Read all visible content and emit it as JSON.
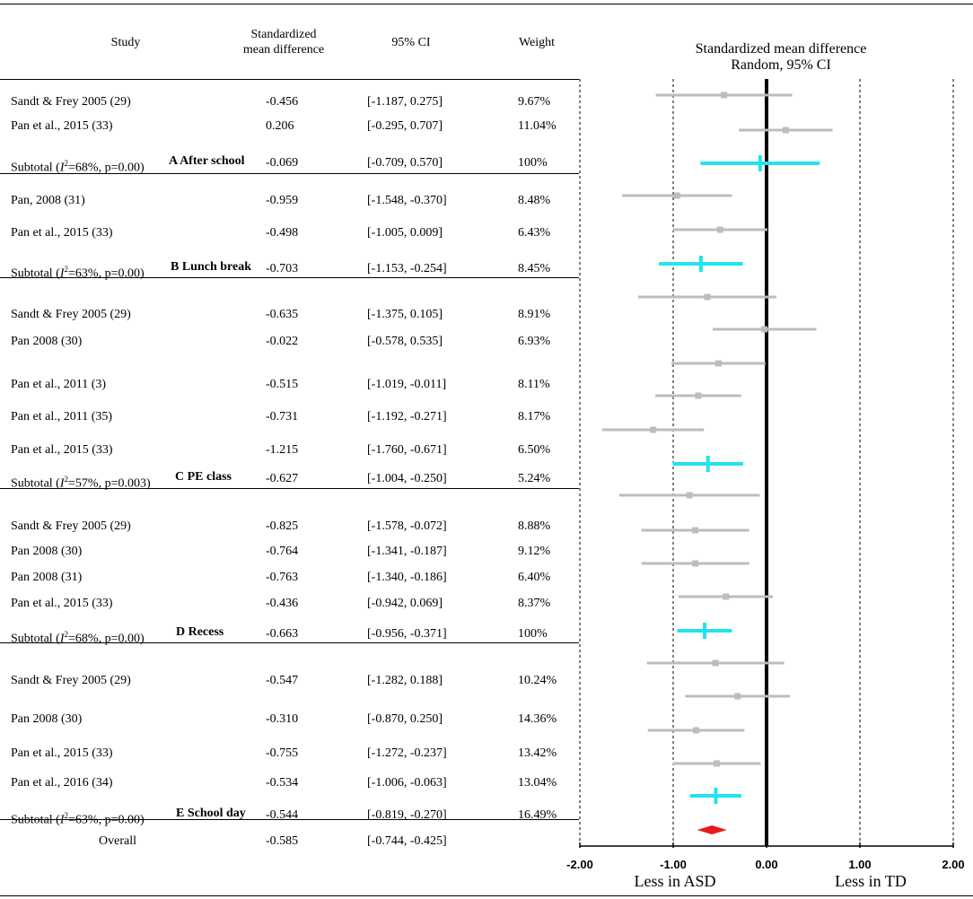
{
  "header": {
    "study": "Study",
    "smd": "Standardized mean difference",
    "ci": "95% CI",
    "weight": "Weight",
    "plot_title_line1": "Standardized mean difference",
    "plot_title_line2": "Random, 95% CI"
  },
  "rows": [
    {
      "study": "Sandt & Frey 2005 (29)",
      "smd": "-0.456",
      "ci": "[-1.187, 0.275]",
      "weight": "9.67%"
    },
    {
      "study": "Pan et al., 2015 (33)",
      "smd": "0.206",
      "ci": "[-0.295, 0.707]",
      "weight": "11.04%"
    },
    {
      "study": "Subtotal (I²=68%, p=0.00)",
      "tag": "A After school",
      "smd": "-0.069",
      "ci": "[-0.709, 0.570]",
      "weight": "100%"
    },
    {
      "study": "Pan, 2008 (31)",
      "smd": "-0.959",
      "ci": "[-1.548, -0.370]",
      "weight": "8.48%"
    },
    {
      "study": "Pan et al., 2015 (33)",
      "smd": "-0.498",
      "ci": "[-1.005, 0.009]",
      "weight": "6.43%"
    },
    {
      "study": "Subtotal (I²=63%, p=0.00)",
      "tag": "B Lunch break",
      "smd": "-0.703",
      "ci": "[-1.153, -0.254]",
      "weight": "8.45%"
    },
    {
      "study": "Sandt & Frey 2005 (29)",
      "smd": "-0.635",
      "ci": "[-1.375, 0.105]",
      "weight": "8.91%"
    },
    {
      "study": "Pan 2008 (30)",
      "smd": "-0.022",
      "ci": "[-0.578, 0.535]",
      "weight": "6.93%"
    },
    {
      "study": "Pan et al., 2011 (3)",
      "smd": "-0.515",
      "ci": "[-1.019, -0.011]",
      "weight": "8.11%"
    },
    {
      "study": "Pan et al., 2011 (35)",
      "smd": "-0.731",
      "ci": "[-1.192, -0.271]",
      "weight": "8.17%"
    },
    {
      "study": "Pan et al., 2015 (33)",
      "smd": "-1.215",
      "ci": "[-1.760, -0.671]",
      "weight": "6.50%"
    },
    {
      "study": "Subtotal (I²=57%, p=0.003)",
      "tag": "C PE class",
      "smd": "-0.627",
      "ci": "[-1.004, -0.250]",
      "weight": "5.24%"
    },
    {
      "study": "Sandt & Frey 2005 (29)",
      "smd": "-0.825",
      "ci": "[-1.578, -0.072]",
      "weight": "8.88%"
    },
    {
      "study": "Pan 2008 (30)",
      "smd": "-0.764",
      "ci": "[-1.341, -0.187]",
      "weight": "9.12%"
    },
    {
      "study": "Pan 2008 (31)",
      "smd": "-0.763",
      "ci": "[-1.340, -0.186]",
      "weight": "6.40%"
    },
    {
      "study": "Pan et al., 2015 (33)",
      "smd": "-0.436",
      "ci": "[-0.942, 0.069]",
      "weight": "8.37%"
    },
    {
      "study": "Subtotal (I²=68%, p=0.00)",
      "tag": "D Recess",
      "smd": "-0.663",
      "ci": "[-0.956, -0.371]",
      "weight": "100%"
    },
    {
      "study": "Sandt & Frey 2005 (29)",
      "smd": "-0.547",
      "ci": "[-1.282, 0.188]",
      "weight": "10.24%"
    },
    {
      "study": "Pan 2008 (30)",
      "smd": "-0.310",
      "ci": "[-0.870, 0.250]",
      "weight": "14.36%"
    },
    {
      "study": "Pan et al., 2015 (33)",
      "smd": "-0.755",
      "ci": "[-1.272, -0.237]",
      "weight": "13.42%"
    },
    {
      "study": "Pan et al., 2016 (34)",
      "smd": "-0.534",
      "ci": "[-1.006, -0.063]",
      "weight": "13.04%"
    },
    {
      "study": "Subtotal (I²=63%, p=0.00)",
      "tag": "E School day",
      "smd": "-0.544",
      "ci": "[-0.819, -0.270]",
      "weight": "16.49%"
    },
    {
      "study": "Overall",
      "smd": "-0.585",
      "ci": "[-0.744, -0.425]",
      "weight": ""
    }
  ],
  "chart_data": {
    "type": "forest",
    "title": "Standardized mean difference Random, 95% CI",
    "xlim": [
      -2.0,
      2.0
    ],
    "xticks": [
      "-2.00",
      "-1.00",
      "0.00",
      "1.00",
      "2.00"
    ],
    "xtick_values": [
      -2,
      -1,
      0,
      1,
      2
    ],
    "left_label": "Less in ASD",
    "right_label": "Less in TD",
    "colors": {
      "study": "#bdbdbd",
      "subtotal": "#22e3ef",
      "overall": "#e8191b",
      "zero_line": "#000000"
    },
    "points": [
      {
        "label": "Sandt & Frey 2005 (29)",
        "kind": "study",
        "est": -0.456,
        "lo": -1.187,
        "hi": 0.275
      },
      {
        "label": "Pan et al., 2015 (33)",
        "kind": "study",
        "est": 0.206,
        "lo": -0.295,
        "hi": 0.707
      },
      {
        "label": "A After school",
        "kind": "subtotal",
        "est": -0.069,
        "lo": -0.709,
        "hi": 0.57
      },
      {
        "label": "Pan, 2008 (31)",
        "kind": "study",
        "est": -0.959,
        "lo": -1.548,
        "hi": -0.37
      },
      {
        "label": "Pan et al., 2015 (33)",
        "kind": "study",
        "est": -0.498,
        "lo": -1.005,
        "hi": 0.009
      },
      {
        "label": "B Lunch break",
        "kind": "subtotal",
        "est": -0.703,
        "lo": -1.153,
        "hi": -0.254
      },
      {
        "label": "Sandt & Frey 2005 (29)",
        "kind": "study",
        "est": -0.635,
        "lo": -1.375,
        "hi": 0.105
      },
      {
        "label": "Pan 2008 (30)",
        "kind": "study",
        "est": -0.022,
        "lo": -0.578,
        "hi": 0.535
      },
      {
        "label": "Pan et al., 2011 (3)",
        "kind": "study",
        "est": -0.515,
        "lo": -1.019,
        "hi": -0.011
      },
      {
        "label": "Pan et al., 2011 (35)",
        "kind": "study",
        "est": -0.731,
        "lo": -1.192,
        "hi": -0.271
      },
      {
        "label": "Pan et al., 2015 (33)",
        "kind": "study",
        "est": -1.215,
        "lo": -1.76,
        "hi": -0.671
      },
      {
        "label": "C PE class",
        "kind": "subtotal",
        "est": -0.627,
        "lo": -1.004,
        "hi": -0.25
      },
      {
        "label": "Sandt & Frey 2005 (29)",
        "kind": "study",
        "est": -0.825,
        "lo": -1.578,
        "hi": -0.072
      },
      {
        "label": "Pan 2008 (30)",
        "kind": "study",
        "est": -0.764,
        "lo": -1.341,
        "hi": -0.187
      },
      {
        "label": "Pan 2008 (31)",
        "kind": "study",
        "est": -0.763,
        "lo": -1.34,
        "hi": -0.186
      },
      {
        "label": "Pan et al., 2015 (33)",
        "kind": "study",
        "est": -0.436,
        "lo": -0.942,
        "hi": 0.069
      },
      {
        "label": "D Recess",
        "kind": "subtotal",
        "est": -0.663,
        "lo": -0.956,
        "hi": -0.371
      },
      {
        "label": "Sandt & Frey 2005 (29)",
        "kind": "study",
        "est": -0.547,
        "lo": -1.282,
        "hi": 0.188
      },
      {
        "label": "Pan 2008 (30)",
        "kind": "study",
        "est": -0.31,
        "lo": -0.87,
        "hi": 0.25
      },
      {
        "label": "Pan et al., 2015 (33)",
        "kind": "study",
        "est": -0.755,
        "lo": -1.272,
        "hi": -0.237
      },
      {
        "label": "Pan et al., 2016 (34)",
        "kind": "study",
        "est": -0.534,
        "lo": -1.006,
        "hi": -0.063
      },
      {
        "label": "E School day",
        "kind": "subtotal",
        "est": -0.544,
        "lo": -0.819,
        "hi": -0.27
      },
      {
        "label": "Overall",
        "kind": "overall",
        "est": -0.585,
        "lo": -0.744,
        "hi": -0.425
      }
    ]
  }
}
